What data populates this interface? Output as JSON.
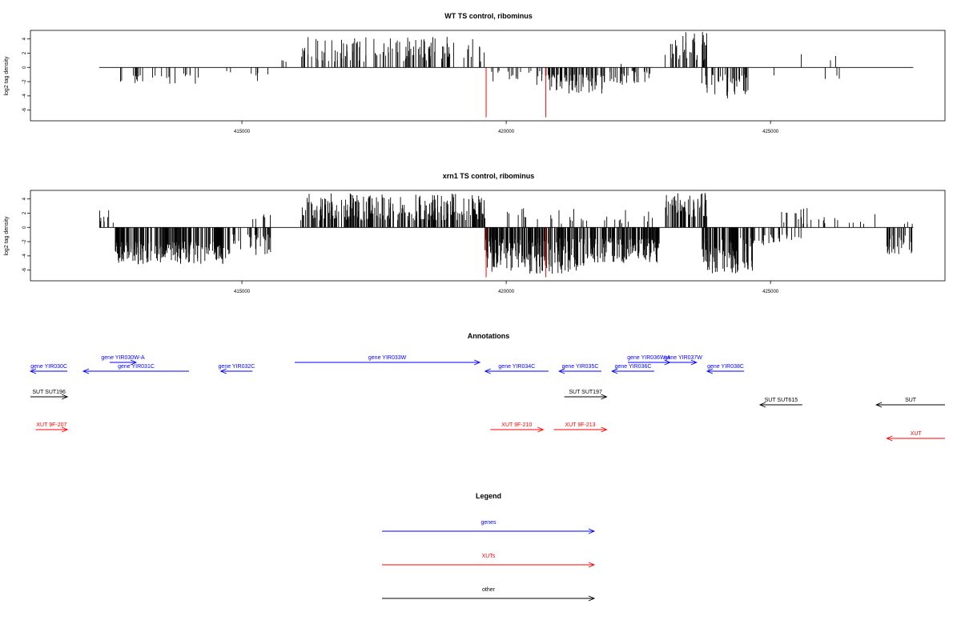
{
  "colors": {
    "axis": "#000000",
    "black": "#000000",
    "gene": "#0000ff",
    "xut": "#ff0000",
    "other": "#000000"
  },
  "chart_data": [
    {
      "type": "bar",
      "id": "wt",
      "title": "WT TS control, ribominus",
      "ylabel": "log2 tag density",
      "xlim": [
        411000,
        428300
      ],
      "ylim": [
        -7.5,
        5.2
      ],
      "data_range": [
        412300,
        427700
      ],
      "xticks": [
        415000,
        420000,
        425000
      ],
      "xtick_labels": [
        "415000",
        "420000",
        "425000"
      ],
      "yticks": [
        4,
        2,
        0,
        -2,
        -4,
        -6
      ],
      "ytick_labels": [
        "4",
        "2",
        "0",
        "-2",
        "-4",
        "-6"
      ],
      "regions": [
        {
          "x": [
            412600,
            413200
          ],
          "y": [
            -1.0,
            -2.2
          ],
          "n": 10
        },
        {
          "x": [
            413200,
            414200
          ],
          "y": [
            -0.8,
            -2.6
          ],
          "n": 14
        },
        {
          "x": [
            414300,
            415000
          ],
          "y": [
            -0.5,
            -1.2
          ],
          "n": 2
        },
        {
          "x": [
            415000,
            415700
          ],
          "y": [
            -0.8,
            -2.0
          ],
          "n": 5
        },
        {
          "x": [
            415700,
            415900
          ],
          "y": [
            0.8,
            2.1
          ],
          "n": 3
        },
        {
          "x": [
            416100,
            419600
          ],
          "y": [
            0.8,
            4.3
          ],
          "n": 120
        },
        {
          "x": [
            419700,
            420200
          ],
          "y": [
            -0.5,
            -2.0
          ],
          "n": 10
        },
        {
          "x": [
            420200,
            420800
          ],
          "y": [
            -0.5,
            -2.5
          ],
          "n": 12
        },
        {
          "x": [
            420800,
            421900
          ],
          "y": [
            -1.0,
            -3.8
          ],
          "n": 70
        },
        {
          "x": [
            421900,
            422800
          ],
          "y": [
            -0.5,
            -2.5
          ],
          "n": 30
        },
        {
          "x": [
            422100,
            422200
          ],
          "y": [
            0.5,
            1.0
          ],
          "n": 1
        },
        {
          "x": [
            423000,
            423800
          ],
          "y": [
            1.0,
            5.0
          ],
          "n": 40
        },
        {
          "x": [
            423700,
            424600
          ],
          "y": [
            -1.0,
            -4.5
          ],
          "n": 40
        },
        {
          "x": [
            425000,
            427600
          ],
          "y": [
            -1.0,
            -2.0
          ],
          "n": 4
        },
        {
          "x": [
            425100,
            427000
          ],
          "y": [
            0.8,
            3.0
          ],
          "n": 3
        }
      ],
      "spikes": [
        {
          "x": 419620,
          "y": -7.0,
          "color": "#ff0000"
        },
        {
          "x": 420750,
          "y": -7.0,
          "color": "#ff0000"
        }
      ]
    },
    {
      "type": "bar",
      "id": "xrn1",
      "title": "xrn1 TS control, ribominus",
      "ylabel": "log2 tag density",
      "xlim": [
        411000,
        428300
      ],
      "ylim": [
        -7.5,
        5.2
      ],
      "data_range": [
        412300,
        427700
      ],
      "xticks": [
        415000,
        420000,
        425000
      ],
      "xtick_labels": [
        "415000",
        "420000",
        "425000"
      ],
      "yticks": [
        4,
        2,
        0,
        -2,
        -4,
        -6
      ],
      "ytick_labels": [
        "4",
        "2",
        "0",
        "-2",
        "-4",
        "-6"
      ],
      "regions": [
        {
          "x": [
            412300,
            412600
          ],
          "y": [
            0.5,
            2.6
          ],
          "n": 8
        },
        {
          "x": [
            412600,
            414700
          ],
          "y": [
            -2.0,
            -5.3
          ],
          "n": 220
        },
        {
          "x": [
            414700,
            415600
          ],
          "y": [
            -1.0,
            -4.0
          ],
          "n": 40
        },
        {
          "x": [
            415200,
            415700
          ],
          "y": [
            1.0,
            2.8
          ],
          "n": 6
        },
        {
          "x": [
            416100,
            419600
          ],
          "y": [
            1.0,
            4.8
          ],
          "n": 260
        },
        {
          "x": [
            419600,
            421500
          ],
          "y": [
            -1.5,
            -6.5
          ],
          "n": 200
        },
        {
          "x": [
            420000,
            421600
          ],
          "y": [
            0.5,
            2.8
          ],
          "n": 20
        },
        {
          "x": [
            421500,
            422900
          ],
          "y": [
            -1.5,
            -5.0
          ],
          "n": 150
        },
        {
          "x": [
            421800,
            422800
          ],
          "y": [
            0.5,
            2.5
          ],
          "n": 12
        },
        {
          "x": [
            423000,
            423800
          ],
          "y": [
            1.5,
            5.0
          ],
          "n": 60
        },
        {
          "x": [
            423700,
            424700
          ],
          "y": [
            -1.5,
            -6.5
          ],
          "n": 110
        },
        {
          "x": [
            424700,
            425600
          ],
          "y": [
            -1.0,
            -2.5
          ],
          "n": 25
        },
        {
          "x": [
            424800,
            426300
          ],
          "y": [
            0.5,
            2.8
          ],
          "n": 20
        },
        {
          "x": [
            426300,
            427200
          ],
          "y": [
            0.5,
            2.0
          ],
          "n": 5
        },
        {
          "x": [
            427200,
            427700
          ],
          "y": [
            -1.0,
            -4.0
          ],
          "n": 30
        },
        {
          "x": [
            427500,
            427700
          ],
          "y": [
            0.5,
            1.0
          ],
          "n": 3
        }
      ],
      "spikes": [
        {
          "x": 419620,
          "y": -7.0,
          "color": "#ff0000"
        },
        {
          "x": 420750,
          "y": -7.0,
          "color": "#ff0000"
        }
      ]
    }
  ],
  "annotations": {
    "title": "Annotations",
    "items": [
      {
        "label": "gene YIR030W-A",
        "type": "gene",
        "start": 412500,
        "end": 413000,
        "strand": "+",
        "row": 0
      },
      {
        "label": "gene YIR030C",
        "type": "gene",
        "start": 411000,
        "end": 411700,
        "strand": "-",
        "row": 1
      },
      {
        "label": "gene YIR031C",
        "type": "gene",
        "start": 412000,
        "end": 414000,
        "strand": "-",
        "row": 1
      },
      {
        "label": "gene YIR032C",
        "type": "gene",
        "start": 414600,
        "end": 415200,
        "strand": "-",
        "row": 1
      },
      {
        "label": "gene YIR033W",
        "type": "gene",
        "start": 416000,
        "end": 419500,
        "strand": "+",
        "row": 0
      },
      {
        "label": "gene YIR034C",
        "type": "gene",
        "start": 419600,
        "end": 420800,
        "strand": "-",
        "row": 1
      },
      {
        "label": "gene YIR035C",
        "type": "gene",
        "start": 421000,
        "end": 421800,
        "strand": "-",
        "row": 1
      },
      {
        "label": "gene YIR036W-A",
        "type": "gene",
        "start": 422300,
        "end": 423100,
        "strand": "+",
        "row": 0
      },
      {
        "label": "gene YIR036C",
        "type": "gene",
        "start": 422000,
        "end": 422800,
        "strand": "-",
        "row": 1
      },
      {
        "label": "gene YIR037W",
        "type": "gene",
        "start": 423100,
        "end": 423600,
        "strand": "+",
        "row": 0
      },
      {
        "label": "gene YIR038C",
        "type": "gene",
        "start": 423800,
        "end": 424500,
        "strand": "-",
        "row": 1
      },
      {
        "label": "SUT SUT196",
        "type": "other",
        "start": 411000,
        "end": 411700,
        "strand": "+",
        "row": 2
      },
      {
        "label": "SUT SUT197",
        "type": "other",
        "start": 421100,
        "end": 421900,
        "strand": "+",
        "row": 2
      },
      {
        "label": "SUT SUT615",
        "type": "other",
        "start": 424800,
        "end": 425600,
        "strand": "-",
        "row": 3
      },
      {
        "label": "SUT",
        "type": "other",
        "start": 427000,
        "end": 428300,
        "strand": "-",
        "row": 3
      },
      {
        "label": "XUT 9F-207",
        "type": "xut",
        "start": 411100,
        "end": 411700,
        "strand": "+",
        "row": 4
      },
      {
        "label": "XUT 9F-210",
        "type": "xut",
        "start": 419700,
        "end": 420700,
        "strand": "+",
        "row": 4
      },
      {
        "label": "XUT 9F-213",
        "type": "xut",
        "start": 420900,
        "end": 421900,
        "strand": "+",
        "row": 4
      },
      {
        "label": "XUT",
        "type": "xut",
        "start": 427200,
        "end": 428300,
        "strand": "-",
        "row": 5
      }
    ]
  },
  "legend": {
    "title": "Legend",
    "entries": [
      {
        "label": "genes",
        "type": "gene"
      },
      {
        "label": "XUTs",
        "type": "xut"
      },
      {
        "label": "other",
        "type": "other"
      }
    ]
  }
}
